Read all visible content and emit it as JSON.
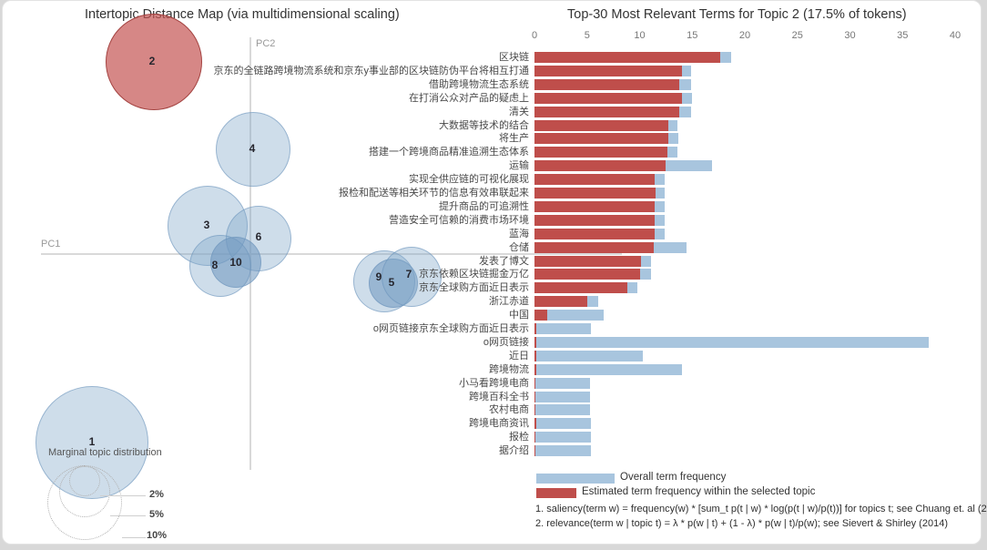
{
  "left_panel": {
    "title": "Intertopic Distance Map (via multidimensional scaling)",
    "x_axis_label": "PC1",
    "y_axis_label": "PC2",
    "marginal_legend": {
      "label": "Marginal topic distribution",
      "sizes": [
        "2%",
        "5%",
        "10%"
      ]
    }
  },
  "right_panel": {
    "title": "Top-30 Most Relevant Terms for Topic 2 (17.5% of tokens)",
    "legend": {
      "overall_label": "Overall term frequency",
      "topic_label": "Estimated term frequency within the selected topic"
    }
  },
  "colors": {
    "overall_bar": "#a8c5de",
    "topic_bar": "#bf4e4b",
    "selected_circle": "#c55452",
    "circle_fill": "#7fa5c7"
  },
  "chart_data": [
    {
      "type": "scatter",
      "title": "Intertopic Distance Map (via multidimensional scaling)",
      "xlabel": "PC1",
      "ylabel": "PC2",
      "size_legend_label": "Marginal topic distribution",
      "size_legend": [
        "2%",
        "5%",
        "10%"
      ],
      "selected_topic": "2",
      "topics": [
        {
          "id": "1",
          "cx": 98,
          "cy": 485,
          "r": 62,
          "selected": false,
          "dark": false,
          "lx": 98,
          "ly": 484
        },
        {
          "id": "2",
          "cx": 166,
          "cy": 67,
          "r": 53,
          "selected": true,
          "dark": false,
          "lx": 164,
          "ly": 66
        },
        {
          "id": "3",
          "cx": 225,
          "cy": 247,
          "r": 44,
          "selected": false,
          "dark": false,
          "lx": 224,
          "ly": 246
        },
        {
          "id": "4",
          "cx": 275,
          "cy": 163,
          "r": 41,
          "selected": false,
          "dark": false,
          "lx": 274,
          "ly": 162
        },
        {
          "id": "6",
          "cx": 281,
          "cy": 261,
          "r": 36,
          "selected": false,
          "dark": false,
          "lx": 281,
          "ly": 259
        },
        {
          "id": "8",
          "cx": 239,
          "cy": 291,
          "r": 34,
          "selected": false,
          "dark": false,
          "lx": 233,
          "ly": 290
        },
        {
          "id": "10",
          "cx": 256,
          "cy": 287,
          "r": 28,
          "selected": false,
          "dark": true,
          "lx": 256,
          "ly": 287
        },
        {
          "id": "9",
          "cx": 419,
          "cy": 308,
          "r": 34,
          "selected": false,
          "dark": false,
          "lx": 413,
          "ly": 303
        },
        {
          "id": "5",
          "cx": 429,
          "cy": 310,
          "r": 27,
          "selected": false,
          "dark": true,
          "lx": 427,
          "ly": 309
        },
        {
          "id": "7",
          "cx": 449,
          "cy": 303,
          "r": 33,
          "selected": false,
          "dark": false,
          "lx": 446,
          "ly": 300
        }
      ]
    },
    {
      "type": "bar",
      "orientation": "horizontal",
      "title": "Top-30 Most Relevant Terms for Topic 2 (17.5% of tokens)",
      "xlim": [
        0,
        40
      ],
      "ticks": [
        0,
        5,
        10,
        15,
        20,
        25,
        30,
        35,
        40
      ],
      "categories": [
        "区块链",
        "京东的全链路跨境物流系统和京东y事业部的区块链防伪平台将相互打通",
        "借助跨境物流生态系统",
        "在打消公众对产品的疑虑上",
        "清关",
        "大数据等技术的结合",
        "将生产",
        "搭建一个跨境商品精准追溯生态体系",
        "运输",
        "实现全供应链的可视化展现",
        "报检和配送等相关环节的信息有效串联起来",
        "提升商品的可追溯性",
        "营造安全可信赖的消费市场环境",
        "蓝海",
        "仓储",
        "发表了博文",
        "京东依赖区块链掘金万亿",
        "京东全球购方面近日表示",
        "浙江赤道",
        "中国",
        "o网页链接京东全球购方面近日表示",
        "o网页链接",
        "近日",
        "跨境物流",
        "小马看跨境电商",
        "跨境百科全书",
        "农村电商",
        "跨境电商资讯",
        "报检",
        "据介绍"
      ],
      "series": [
        {
          "name": "Overall term frequency",
          "values": [
            18.7,
            14.9,
            14.9,
            15.0,
            14.9,
            13.6,
            13.7,
            13.6,
            16.9,
            12.4,
            12.4,
            12.4,
            12.4,
            12.4,
            14.5,
            11.1,
            11.1,
            9.8,
            6.1,
            6.6,
            5.4,
            37.5,
            10.3,
            14.0,
            5.3,
            5.3,
            5.3,
            5.4,
            5.4,
            5.4
          ]
        },
        {
          "name": "Estimated term frequency within the selected topic",
          "values": [
            17.7,
            14.0,
            13.8,
            14.0,
            13.8,
            12.7,
            12.7,
            12.6,
            12.5,
            11.4,
            11.5,
            11.4,
            11.4,
            11.4,
            11.3,
            10.1,
            10.0,
            8.8,
            5.0,
            1.2,
            0.15,
            0.15,
            0.15,
            0.15,
            0.1,
            0.1,
            0.1,
            0.15,
            0.1,
            0.1
          ]
        }
      ],
      "footnotes": [
        "1. saliency(term w) = frequency(w) * [sum_t p(t | w) * log(p(t | w)/p(t))] for topics t; see Chuang et. al (2",
        "2. relevance(term w | topic t) = λ * p(w | t) + (1 - λ) * p(w | t)/p(w); see Sievert & Shirley (2014)"
      ]
    }
  ]
}
